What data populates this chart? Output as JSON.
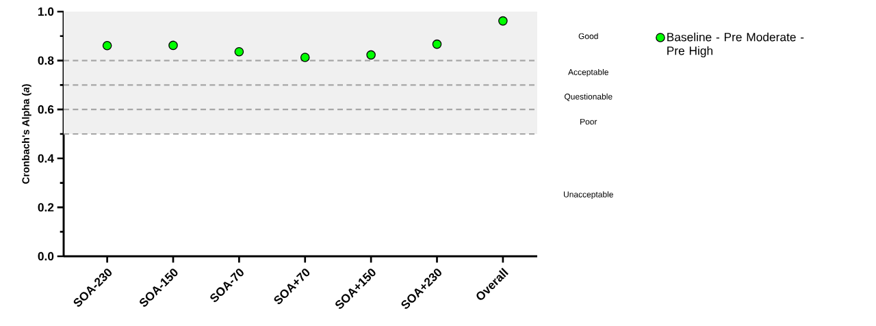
{
  "chart_data": {
    "type": "scatter",
    "ylabel": "Cronbach's Alpha (*a*)",
    "categories": [
      "SOA-230",
      "SOA-150",
      "SOA-70",
      "SOA+70",
      "SOA+150",
      "SOA+230",
      "Overall"
    ],
    "series": [
      {
        "name": "Baseline - Pre Moderate - Pre High",
        "color": "#00ff00",
        "values": [
          0.861,
          0.862,
          0.836,
          0.813,
          0.823,
          0.867,
          0.962
        ]
      }
    ],
    "ylim": [
      0,
      1.0
    ],
    "yticks": [
      {
        "value": 0,
        "label": "0.0"
      },
      0.2,
      0.4,
      0.6,
      0.8,
      {
        "value": 1.0,
        "label": "1.0"
      }
    ],
    "ref_lines": [
      {
        "axis": "y",
        "value": 0.8,
        "color": "#a6a6a6",
        "line_style": "dashed"
      },
      {
        "axis": "y",
        "value": 0.7,
        "color": "#a6a6a6",
        "line_style": "dashed"
      },
      {
        "axis": "y",
        "value": 0.6,
        "color": "#a6a6a6",
        "line_style": "dashed"
      },
      {
        "axis": "y",
        "value": 0.5,
        "color": "#a6a6a6",
        "line_style": "dashed"
      }
    ],
    "bands": [
      {
        "axis": "y",
        "from": 0.5,
        "to": 1.0,
        "color": "#f0f0f0"
      }
    ],
    "annotations": [
      "Good",
      "Acceptable",
      "Questionable",
      "Poor",
      "Unacceptable"
    ],
    "legend": "right"
  }
}
